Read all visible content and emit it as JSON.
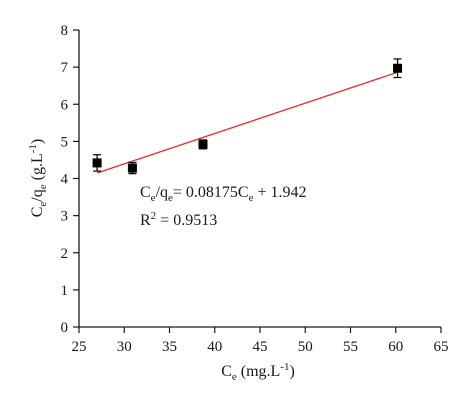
{
  "chart_data": {
    "type": "scatter",
    "xlabel": {
      "main": "C",
      "sub": "e",
      "rest": " (mg.L",
      "sup": "-1",
      "close": ")"
    },
    "ylabel": {
      "main1": "C",
      "sub1": "e",
      "main2": "/q",
      "sub2": "e",
      "rest": " (g.L",
      "sup": "-1",
      "close": ")"
    },
    "xlim": [
      25,
      65
    ],
    "ylim": [
      0,
      8
    ],
    "xticks": [
      25,
      30,
      35,
      40,
      45,
      50,
      55,
      60,
      65
    ],
    "yticks": [
      0,
      1,
      2,
      3,
      4,
      5,
      6,
      7,
      8
    ],
    "grid": false,
    "series": [
      {
        "type": "scatter",
        "marker": "square",
        "color": "#000000",
        "points": [
          {
            "x": 27.0,
            "y": 4.42,
            "err": 0.22
          },
          {
            "x": 30.9,
            "y": 4.28,
            "err": 0.15
          },
          {
            "x": 38.7,
            "y": 4.92,
            "err": 0.12
          },
          {
            "x": 60.2,
            "y": 6.97,
            "err": 0.25
          }
        ]
      },
      {
        "type": "line",
        "color": "#e03020",
        "slope": 0.08175,
        "intercept": 1.942,
        "x_range": [
          27.0,
          60.2
        ]
      }
    ],
    "annotations": {
      "equation": {
        "lhs_main": "C",
        "lhs_sub": "e",
        "lhs_div": "/q",
        "lhs_sub2": "e",
        "rhs": "= 0.08175C",
        "rhs_sub": "e",
        "rhs_tail": " + 1.942"
      },
      "r2": {
        "label": "R",
        "sup": "2",
        "value": " = 0.9513"
      }
    }
  }
}
